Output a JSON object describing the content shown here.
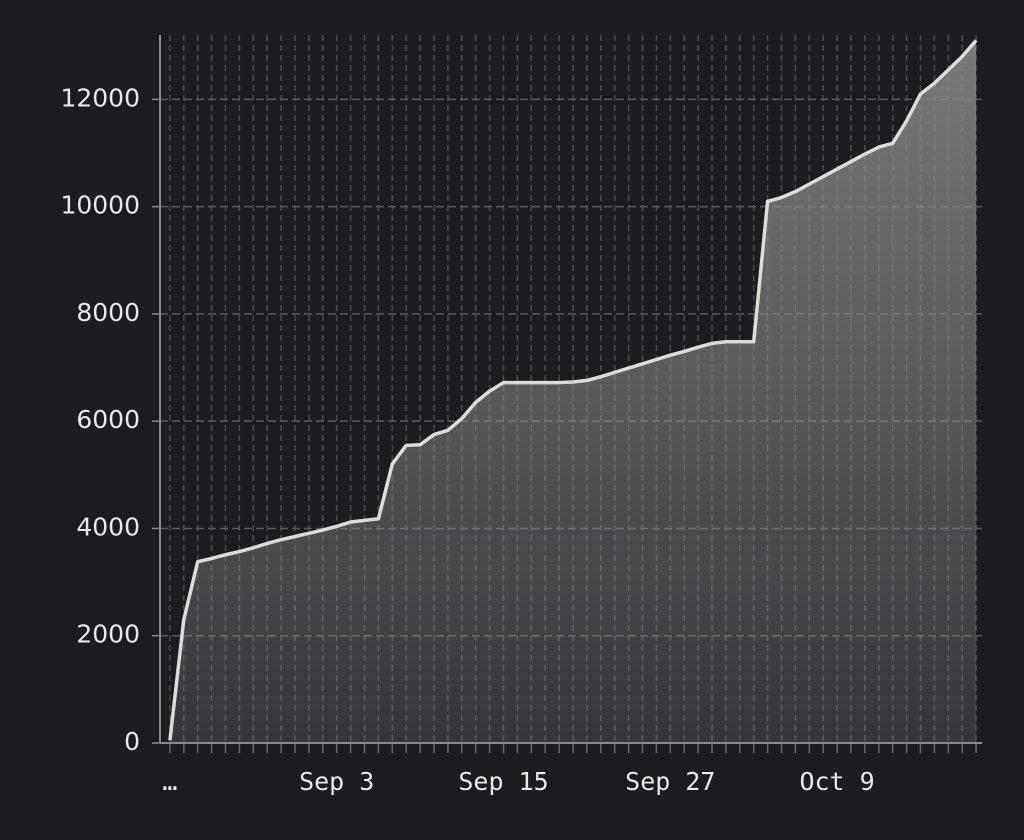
{
  "chart_data": {
    "type": "area",
    "color": "#dcdcdc",
    "fill_color": "#8a8a8a",
    "grid": true,
    "x": [
      "Aug 22",
      "Aug 23",
      "Aug 24",
      "Aug 25",
      "Aug 26",
      "Aug 27",
      "Aug 28",
      "Aug 29",
      "Aug 30",
      "Aug 31",
      "Sep 1",
      "Sep 2",
      "Sep 3",
      "Sep 4",
      "Sep 5",
      "Sep 6",
      "Sep 7",
      "Sep 8",
      "Sep 9",
      "Sep 10",
      "Sep 11",
      "Sep 12",
      "Sep 13",
      "Sep 14",
      "Sep 15",
      "Sep 16",
      "Sep 17",
      "Sep 18",
      "Sep 19",
      "Sep 20",
      "Sep 21",
      "Sep 22",
      "Sep 23",
      "Sep 24",
      "Sep 25",
      "Sep 26",
      "Sep 27",
      "Sep 28",
      "Sep 29",
      "Sep 30",
      "Oct 1",
      "Oct 2",
      "Oct 3",
      "Oct 4",
      "Oct 5",
      "Oct 6",
      "Oct 7",
      "Oct 8",
      "Oct 9",
      "Oct 10",
      "Oct 11",
      "Oct 12",
      "Oct 13",
      "Oct 14",
      "Oct 15",
      "Oct 16",
      "Oct 17",
      "Oct 18",
      "Oct 19"
    ],
    "values": [
      50,
      2300,
      3380,
      3440,
      3510,
      3570,
      3640,
      3720,
      3790,
      3850,
      3910,
      3970,
      4040,
      4120,
      4150,
      4180,
      5200,
      5550,
      5560,
      5750,
      5830,
      6050,
      6350,
      6560,
      6720,
      6720,
      6720,
      6720,
      6720,
      6730,
      6760,
      6830,
      6910,
      6990,
      7070,
      7150,
      7230,
      7300,
      7380,
      7450,
      7480,
      7480,
      7480,
      10100,
      10170,
      10280,
      10420,
      10560,
      10700,
      10840,
      10980,
      11110,
      11180,
      11600,
      12100,
      12300,
      12550,
      12800,
      13100
    ],
    "xlim": [
      "Aug 21",
      "Oct 20"
    ],
    "xticks": [
      {
        "value": "Aug 22",
        "label": "…"
      },
      "Sep 3",
      "Sep 15",
      "Sep 27",
      "Oct 9"
    ],
    "ylim": [
      0,
      13200
    ],
    "yticks": [
      0,
      2000,
      4000,
      6000,
      8000,
      10000,
      12000
    ]
  }
}
